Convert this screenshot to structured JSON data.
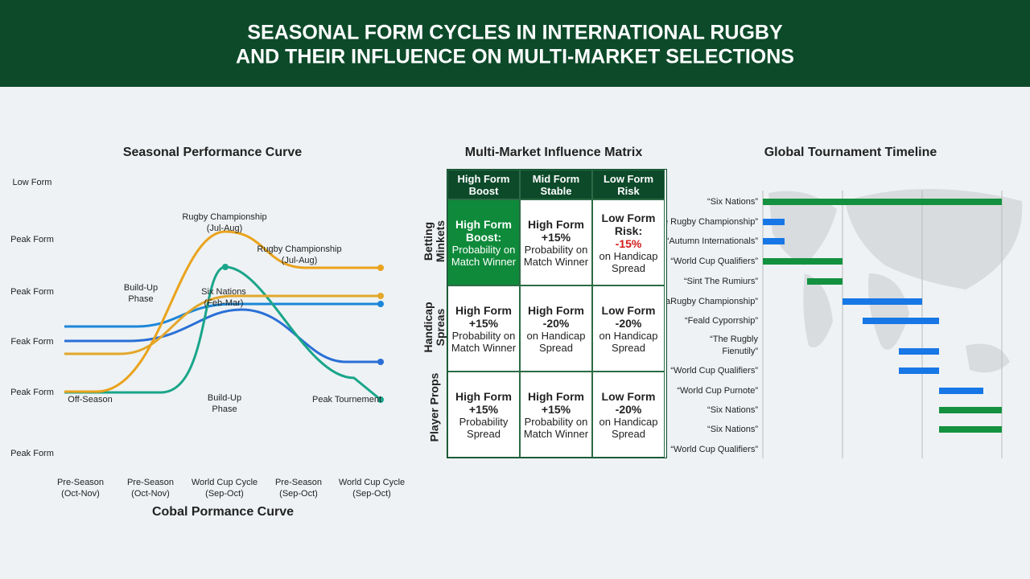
{
  "header": {
    "lines": [
      "SEASONAL FORM CYCLES IN INTERNATIONAL RUGBY",
      "AND THEIR INFLUENCE ON MULTI-MARKET SELECTIONS"
    ]
  },
  "curve_panel": {
    "title": "Seasonal Performance Curve",
    "y_labels": [
      "Low Form",
      "Peak Form",
      "Peak Form",
      "Feak Form",
      "Peak Form",
      "Peak Form"
    ],
    "annotations": [
      {
        "lines": [
          "Rugby Championship",
          "(Jul-Aug)"
        ]
      },
      {
        "lines": [
          "Rugby Championship",
          "(Jul-Aug)"
        ]
      },
      {
        "lines": [
          "Build-Up",
          "Phase"
        ]
      },
      {
        "lines": [
          "Six Nations",
          "(Feb-Mar)"
        ]
      },
      {
        "lines": [
          "Off-Season"
        ]
      },
      {
        "lines": [
          "Build-Up",
          "Phase"
        ]
      },
      {
        "lines": [
          "Peak Tournement"
        ]
      }
    ],
    "x_labels": [
      {
        "lines": [
          "Pre-Season",
          "(Oct-Nov)"
        ]
      },
      {
        "lines": [
          "Pre-Season",
          "(Oct-Nov)"
        ]
      },
      {
        "lines": [
          "World Cup Cycle",
          "(Sep-Oct)"
        ]
      },
      {
        "lines": [
          "Pre-Season",
          "(Sep-Oct)"
        ]
      },
      {
        "lines": [
          "World Cup Cycle",
          "(Sep-Oct)"
        ]
      }
    ],
    "x_title": "Cobal Pormance Curve"
  },
  "matrix_panel": {
    "title": "Multi-Market Influence Matrix",
    "columns": [
      "High Form Boost",
      "Mid Form Stable",
      "Low Form Risk"
    ],
    "rows": [
      {
        "label": "Betting Minkets",
        "cells": [
          {
            "heading": "High Form Boost:",
            "detail": "Probability on Match Winner"
          },
          {
            "heading": "High Form +15%",
            "detail": "Probability on Match Winner"
          },
          {
            "heading": "Low Form Risk:",
            "alert": "-15%",
            "detail": "on Handicap Spread"
          }
        ]
      },
      {
        "label": "Handicap Spreas",
        "cells": [
          {
            "heading": "High Form +15%",
            "detail": "Probability on Match Winner"
          },
          {
            "heading": "High Form -20%",
            "detail": "on Handicap Spread"
          },
          {
            "heading": "Low Form -20%",
            "detail": "on Handicap Spread"
          }
        ]
      },
      {
        "label": "Player Props",
        "cells": [
          {
            "heading": "High Form +15%",
            "detail": "Probability Spread"
          },
          {
            "heading": "High Form +15%",
            "detail": "Probability on Match Winner"
          },
          {
            "heading": "Low Form -20%",
            "detail": "on Handicap Spread"
          }
        ]
      }
    ]
  },
  "timeline_panel": {
    "title": "Global Tournament Timeline",
    "labels": [
      [
        "“Six Nations”"
      ],
      [
        "“The Rugby Championship”"
      ],
      [
        "“Autumn Internationals”"
      ],
      [
        "“World Cup Qualifiers”"
      ],
      [
        "“Sint The Rumiurs”"
      ],
      [
        "“ThaRugby Championship”"
      ],
      [
        "“Feald Cyporrship”"
      ],
      [
        "“The Rugbly",
        "Fienutily”"
      ],
      [
        "“World Cup Qualifiers”"
      ],
      [
        "“World Cup Purnote”"
      ],
      [
        "“Six Nations”"
      ],
      [
        "“Six Nations”"
      ],
      [
        "“World Cup Qualifiers”"
      ]
    ]
  }
}
